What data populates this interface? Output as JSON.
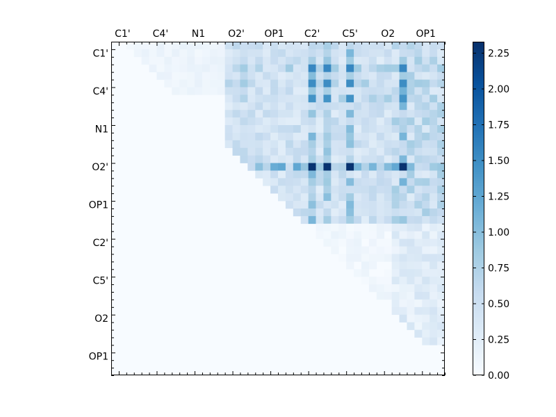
{
  "chart_data": {
    "type": "heatmap",
    "title": "",
    "xlabel": "",
    "ylabel": "",
    "x_tick_labels": [
      "C1'",
      "C4'",
      "N1",
      "O2'",
      "OP1",
      "C2'",
      "C5'",
      "O2",
      "OP1"
    ],
    "y_tick_labels": [
      "C1'",
      "C4'",
      "N1",
      "O2'",
      "OP1",
      "C2'",
      "C5'",
      "O2",
      "OP1"
    ],
    "x_tick_position": "top",
    "matrix_size": 44,
    "tick_every": 5,
    "colormap": "Blues",
    "vmin": 0.0,
    "vmax": 2.33,
    "colorbar_ticks": [
      "0.00",
      "0.25",
      "0.50",
      "0.75",
      "1.00",
      "1.25",
      "1.50",
      "1.75",
      "2.00",
      "2.25"
    ],
    "colorbar_tick_values": [
      0.0,
      0.25,
      0.5,
      0.75,
      1.0,
      1.25,
      1.5,
      1.75,
      2.0,
      2.25
    ],
    "mask": "upper-triangle",
    "structure": {
      "light_band": {
        "rows_from": 0,
        "rows_to": 7,
        "cols_from": 2,
        "value": 0.12
      },
      "mid_block": {
        "rows_from": 0,
        "rows_to": 24,
        "cols_from": 15,
        "cols_to": 37,
        "value": 0.45
      },
      "right_block": {
        "rows_from": 0,
        "rows_to": 24,
        "cols_from": 37,
        "cols_to": 44,
        "value": 0.55
      },
      "lower_right": {
        "rows_from": 24,
        "rows_to": 40,
        "cols_from": 37,
        "value": 0.3
      },
      "strong_rows": [
        {
          "row": 3,
          "value": 1.55
        },
        {
          "row": 5,
          "value": 1.5
        },
        {
          "row": 7,
          "value": 1.45
        },
        {
          "row": 16,
          "value": 2.3
        }
      ],
      "strong_cols": [
        {
          "col": 26,
          "value": 1.5
        },
        {
          "col": 28,
          "value": 1.4
        },
        {
          "col": 31,
          "value": 1.5
        },
        {
          "col": 38,
          "value": 1.6
        }
      ]
    }
  }
}
